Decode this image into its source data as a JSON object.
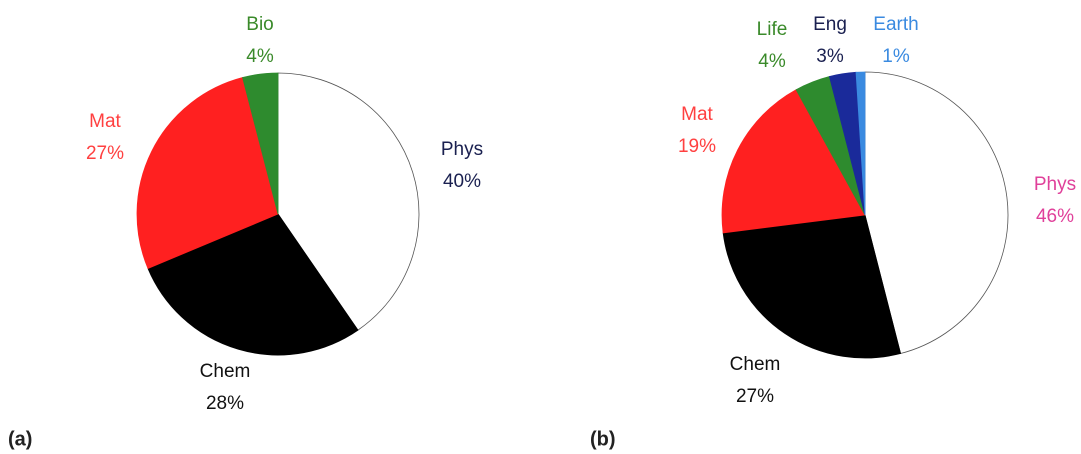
{
  "chart_data": [
    {
      "type": "pie",
      "label": "(a)",
      "categories": [
        "Phys",
        "Chem",
        "Mat",
        "Bio"
      ],
      "values": [
        40,
        28,
        27,
        4
      ],
      "value_labels": [
        "40%",
        "28%",
        "27%",
        "4%"
      ],
      "colors": [
        "#ffffff",
        "#000000",
        "#ff2020",
        "#2e8b2e"
      ],
      "label_colors": [
        "#1a2050",
        "#111111",
        "#ff4040",
        "#3a8a2a"
      ]
    },
    {
      "type": "pie",
      "label": "(b)",
      "categories": [
        "Phys",
        "Chem",
        "Mat",
        "Life",
        "Eng",
        "Earth"
      ],
      "values": [
        46,
        27,
        19,
        4,
        3,
        1
      ],
      "value_labels": [
        "46%",
        "27%",
        "19%",
        "4%",
        "3%",
        "1%"
      ],
      "colors": [
        "#ffffff",
        "#000000",
        "#ff2020",
        "#2e8b2e",
        "#1a2a9a",
        "#3a8ae0"
      ],
      "label_colors": [
        "#e0409a",
        "#111111",
        "#ff4040",
        "#3a8a2a",
        "#1a2050",
        "#3a8ae0"
      ]
    }
  ]
}
